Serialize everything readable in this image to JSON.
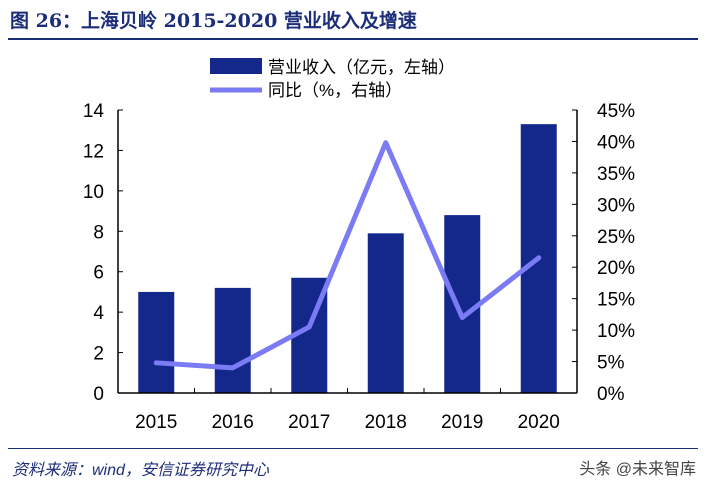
{
  "title": "图 26：上海贝岭 2015-2020 营业收入及增速",
  "source": "资料来源：wind，安信证券研究中心",
  "watermark": "头条 @未来智库",
  "chart_data": {
    "type": "bar+line",
    "categories": [
      "2015",
      "2016",
      "2017",
      "2018",
      "2019",
      "2020"
    ],
    "series": [
      {
        "name": "营业收入（亿元，左轴）",
        "type": "bar",
        "axis": "left",
        "color": "#13288a",
        "values": [
          5.0,
          5.2,
          5.7,
          7.9,
          8.8,
          13.3
        ]
      },
      {
        "name": "同比（%，右轴）",
        "type": "line",
        "axis": "right",
        "color": "#7b7bf5",
        "values": [
          4.8,
          4.0,
          10.5,
          39.8,
          12.0,
          21.5
        ]
      }
    ],
    "left_axis": {
      "ylim": [
        0,
        14
      ],
      "ticks": [
        "0",
        "2",
        "4",
        "6",
        "8",
        "10",
        "12",
        "14"
      ]
    },
    "right_axis": {
      "ylim": [
        0,
        45
      ],
      "ticks": [
        "0%",
        "5%",
        "10%",
        "15%",
        "20%",
        "25%",
        "30%",
        "35%",
        "40%",
        "45%"
      ]
    },
    "legend": "top-center",
    "grid": false
  }
}
